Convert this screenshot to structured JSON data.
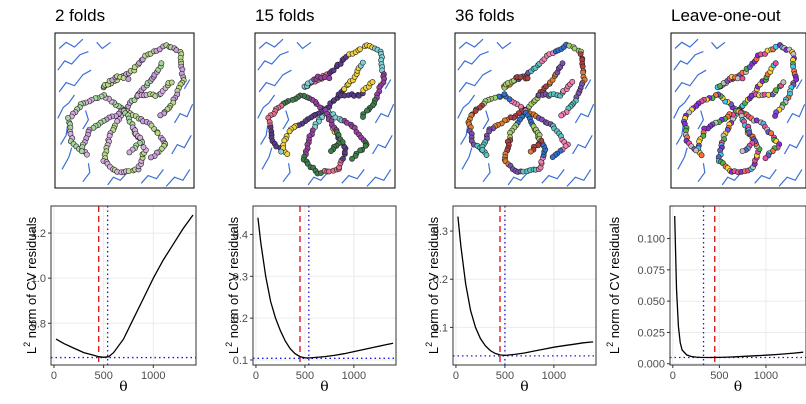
{
  "figure": {
    "ylabel_main": "L",
    "ylabel_sup": "2",
    "ylabel_rest": " norm of CV residuals",
    "xlabel": "θ"
  },
  "chart_data": [
    {
      "type": "line",
      "title": "2 folds",
      "xlim": [
        -30,
        1430
      ],
      "ylim": [
        0.615,
        1.32
      ],
      "xticks": [
        0,
        500,
        1000
      ],
      "yticks": [
        0.8,
        1.0,
        1.2
      ],
      "ytick_labels": [
        "0.8",
        "1.0",
        "1.2"
      ],
      "x": [
        20,
        100,
        200,
        300,
        400,
        450,
        500,
        550,
        600,
        700,
        800,
        900,
        1000,
        1100,
        1200,
        1300,
        1400
      ],
      "y": [
        0.73,
        0.71,
        0.69,
        0.67,
        0.658,
        0.652,
        0.649,
        0.652,
        0.67,
        0.73,
        0.82,
        0.91,
        1.0,
        1.08,
        1.15,
        1.22,
        1.28
      ],
      "min_line": 0.648,
      "vline_red": 450,
      "vline_blue": 540,
      "scatter_palette": [
        "#b9d98a",
        "#c9a0dc",
        "#a6d5a0",
        "#d8b0e0"
      ]
    },
    {
      "type": "line",
      "title": "15 folds",
      "xlim": [
        -30,
        1430
      ],
      "ylim": [
        0.088,
        0.468
      ],
      "xticks": [
        0,
        500,
        1000
      ],
      "yticks": [
        0.1,
        0.2,
        0.3,
        0.4
      ],
      "ytick_labels": [
        "0.1",
        "0.2",
        "0.3",
        "0.4"
      ],
      "x": [
        20,
        50,
        100,
        150,
        200,
        250,
        300,
        350,
        400,
        450,
        500,
        550,
        600,
        700,
        800,
        900,
        1000,
        1100,
        1200,
        1300,
        1400
      ],
      "y": [
        0.44,
        0.38,
        0.3,
        0.24,
        0.2,
        0.17,
        0.145,
        0.127,
        0.115,
        0.108,
        0.105,
        0.105,
        0.106,
        0.108,
        0.111,
        0.115,
        0.12,
        0.125,
        0.13,
        0.135,
        0.14
      ],
      "min_line": 0.104,
      "vline_red": 450,
      "vline_blue": 540,
      "scatter_palette": [
        "#e8708f",
        "#5a3a8c",
        "#f2d23c",
        "#7fd1d8",
        "#9b3fa6",
        "#3c7f4a"
      ]
    },
    {
      "type": "line",
      "title": "36 folds",
      "xlim": [
        -30,
        1430
      ],
      "ylim": [
        0.022,
        0.352
      ],
      "xticks": [
        0,
        500,
        1000
      ],
      "yticks": [
        0.1,
        0.2,
        0.3
      ],
      "ytick_labels": [
        "0.1",
        "0.2",
        "0.3"
      ],
      "x": [
        20,
        50,
        100,
        150,
        200,
        250,
        300,
        350,
        400,
        450,
        500,
        550,
        600,
        700,
        800,
        900,
        1000,
        1100,
        1200,
        1300,
        1400
      ],
      "y": [
        0.33,
        0.27,
        0.19,
        0.135,
        0.1,
        0.077,
        0.062,
        0.052,
        0.046,
        0.043,
        0.042,
        0.043,
        0.044,
        0.047,
        0.051,
        0.055,
        0.059,
        0.062,
        0.065,
        0.068,
        0.07
      ],
      "min_line": 0.041,
      "vline_red": 450,
      "vline_blue": 500,
      "scatter_palette": [
        "#e07a2f",
        "#7b4fb3",
        "#59c3c3",
        "#f27fb2",
        "#2f6fd0",
        "#a2d06b",
        "#b04040"
      ]
    },
    {
      "type": "line",
      "title": "Leave-one-out",
      "xlim": [
        -30,
        1430
      ],
      "ylim": [
        -0.001,
        0.126
      ],
      "xticks": [
        0,
        500,
        1000
      ],
      "yticks": [
        0.0,
        0.025,
        0.05,
        0.075,
        0.1
      ],
      "ytick_labels": [
        "0.000",
        "0.025",
        "0.050",
        "0.075",
        "0.100"
      ],
      "x": [
        20,
        40,
        60,
        80,
        100,
        150,
        200,
        250,
        300,
        400,
        500,
        600,
        700,
        800,
        900,
        1000,
        1100,
        1200,
        1300,
        1400
      ],
      "y": [
        0.118,
        0.06,
        0.03,
        0.017,
        0.011,
        0.007,
        0.0058,
        0.0053,
        0.0051,
        0.005,
        0.0051,
        0.0053,
        0.0056,
        0.006,
        0.0064,
        0.0068,
        0.0073,
        0.0079,
        0.0085,
        0.0092
      ],
      "min_line": 0.005,
      "vline_red": 450,
      "vline_blue": 330,
      "scatter_palette": [
        "#ff6f3c",
        "#4ab24a",
        "#6a5acd",
        "#ffd23c",
        "#e84fa0",
        "#3cc8e8",
        "#8a2be2",
        "#c0c0c0"
      ]
    }
  ]
}
